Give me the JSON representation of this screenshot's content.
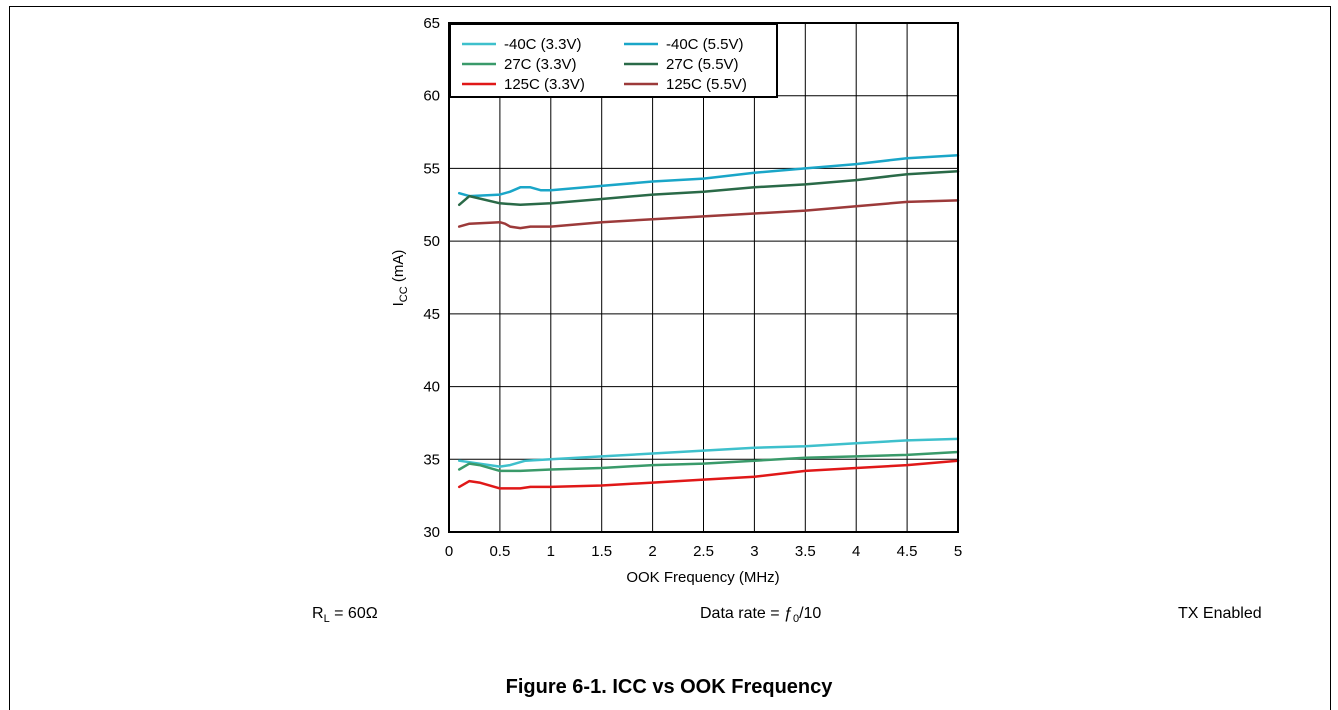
{
  "chart_data": {
    "type": "line",
    "xlabel": "OOK Frequency (MHz)",
    "ylabel_main": "I",
    "ylabel_sub": "CC",
    "ylabel_unit": " (mA)",
    "xlim": [
      0,
      5
    ],
    "ylim": [
      30,
      65
    ],
    "xticks": [
      0,
      0.5,
      1,
      1.5,
      2,
      2.5,
      3,
      3.5,
      4,
      4.5,
      5
    ],
    "xtick_labels": [
      "0",
      "0.5",
      "1",
      "1.5",
      "2",
      "2.5",
      "3",
      "3.5",
      "4",
      "4.5",
      "5"
    ],
    "yticks": [
      30,
      35,
      40,
      45,
      50,
      55,
      60,
      65
    ],
    "ytick_labels": [
      "30",
      "35",
      "40",
      "45",
      "50",
      "55",
      "60",
      "65"
    ],
    "grid": true,
    "legend_position": "top-left",
    "series": [
      {
        "name": "-40C (3.3V)",
        "color": "#3ec0cc",
        "x": [
          0.1,
          0.2,
          0.5,
          0.6,
          0.75,
          1,
          1.5,
          2,
          2.5,
          3,
          3.5,
          4,
          4.5,
          5
        ],
        "y": [
          34.9,
          34.8,
          34.5,
          34.6,
          34.9,
          35.0,
          35.2,
          35.4,
          35.6,
          35.8,
          35.9,
          36.1,
          36.3,
          36.4
        ]
      },
      {
        "name": "-40C (5.5V)",
        "color": "#1aa6c8",
        "x": [
          0.1,
          0.2,
          0.5,
          0.6,
          0.7,
          0.8,
          0.9,
          1,
          1.5,
          2,
          2.5,
          3,
          3.5,
          4,
          4.5,
          5
        ],
        "y": [
          53.3,
          53.1,
          53.2,
          53.4,
          53.7,
          53.7,
          53.5,
          53.5,
          53.8,
          54.1,
          54.3,
          54.7,
          55.0,
          55.3,
          55.7,
          55.9
        ]
      },
      {
        "name": "27C (3.3V)",
        "color": "#3a9a6a",
        "x": [
          0.1,
          0.2,
          0.3,
          0.5,
          0.7,
          1,
          1.5,
          2,
          2.5,
          3,
          3.5,
          4,
          4.5,
          5
        ],
        "y": [
          34.3,
          34.7,
          34.6,
          34.2,
          34.2,
          34.3,
          34.4,
          34.6,
          34.7,
          34.9,
          35.1,
          35.2,
          35.3,
          35.5
        ]
      },
      {
        "name": "27C (5.5V)",
        "color": "#2a6a48",
        "x": [
          0.1,
          0.2,
          0.5,
          0.7,
          1,
          1.5,
          2,
          2.5,
          3,
          3.5,
          4,
          4.5,
          5
        ],
        "y": [
          52.5,
          53.1,
          52.6,
          52.5,
          52.6,
          52.9,
          53.2,
          53.4,
          53.7,
          53.9,
          54.2,
          54.6,
          54.8
        ]
      },
      {
        "name": "125C (3.3V)",
        "color": "#e01818",
        "x": [
          0.1,
          0.2,
          0.3,
          0.5,
          0.7,
          0.8,
          1,
          1.5,
          2,
          2.5,
          3,
          3.5,
          4,
          4.5,
          5
        ],
        "y": [
          33.1,
          33.5,
          33.4,
          33.0,
          33.0,
          33.1,
          33.1,
          33.2,
          33.4,
          33.6,
          33.8,
          34.2,
          34.4,
          34.6,
          34.9
        ]
      },
      {
        "name": "125C (5.5V)",
        "color": "#9c3a3a",
        "x": [
          0.1,
          0.2,
          0.5,
          0.55,
          0.6,
          0.7,
          0.8,
          1,
          1.5,
          2,
          2.5,
          3,
          3.5,
          4,
          4.5,
          5
        ],
        "y": [
          51.0,
          51.2,
          51.3,
          51.2,
          51.0,
          50.9,
          51.0,
          51.0,
          51.3,
          51.5,
          51.7,
          51.9,
          52.1,
          52.4,
          52.7,
          52.8
        ]
      }
    ]
  },
  "notes": {
    "rl_prefix": "R",
    "rl_sub": "L",
    "rl_value": " = 60Ω",
    "data_rate": "Data rate = ƒ",
    "data_rate_sub": "0",
    "data_rate_suffix": "/10",
    "tx": "TX Enabled"
  },
  "caption": "Figure 6-1. ICC vs OOK Frequency"
}
